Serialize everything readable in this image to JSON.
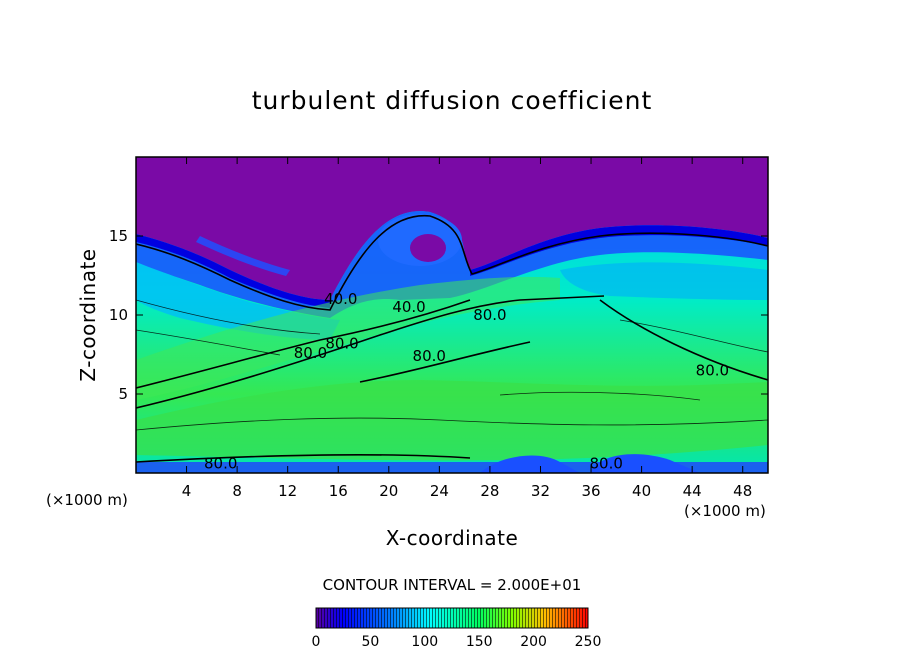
{
  "chart_data": {
    "type": "heatmap",
    "title": "turbulent diffusion coefficient",
    "xlabel": "X-coordinate",
    "ylabel": "Z-coordinate",
    "x_unit_label": "(×1000 m)",
    "xlim": [
      0,
      50
    ],
    "ylim": [
      0,
      20
    ],
    "xticks": [
      4,
      8,
      12,
      16,
      20,
      24,
      28,
      32,
      36,
      40,
      44,
      48
    ],
    "yticks": [
      5,
      10,
      15
    ],
    "contour_interval_label": "CONTOUR INTERVAL = 2.000E+01",
    "colorbar": {
      "range": [
        0,
        250
      ],
      "ticks": [
        0,
        50,
        100,
        150,
        200,
        250
      ]
    },
    "contour_labels": [
      {
        "text": "40.0",
        "x": 16.2,
        "z": 11.0
      },
      {
        "text": "40.0",
        "x": 21.6,
        "z": 10.5
      },
      {
        "text": "80.0",
        "x": 28.0,
        "z": 10.0
      },
      {
        "text": "80.0",
        "x": 13.8,
        "z": 7.6
      },
      {
        "text": "80.0",
        "x": 16.3,
        "z": 8.2
      },
      {
        "text": "80.0",
        "x": 23.2,
        "z": 7.4
      },
      {
        "text": "80.0",
        "x": 45.6,
        "z": 6.5
      },
      {
        "text": "80.0",
        "x": 6.7,
        "z": 0.6
      },
      {
        "text": "80.0",
        "x": 37.2,
        "z": 0.6
      }
    ],
    "colors": {
      "background_region": "#7a0aa6",
      "low": "#0000ff",
      "mid": "#00e0ff",
      "high": "#2fe04a"
    }
  }
}
